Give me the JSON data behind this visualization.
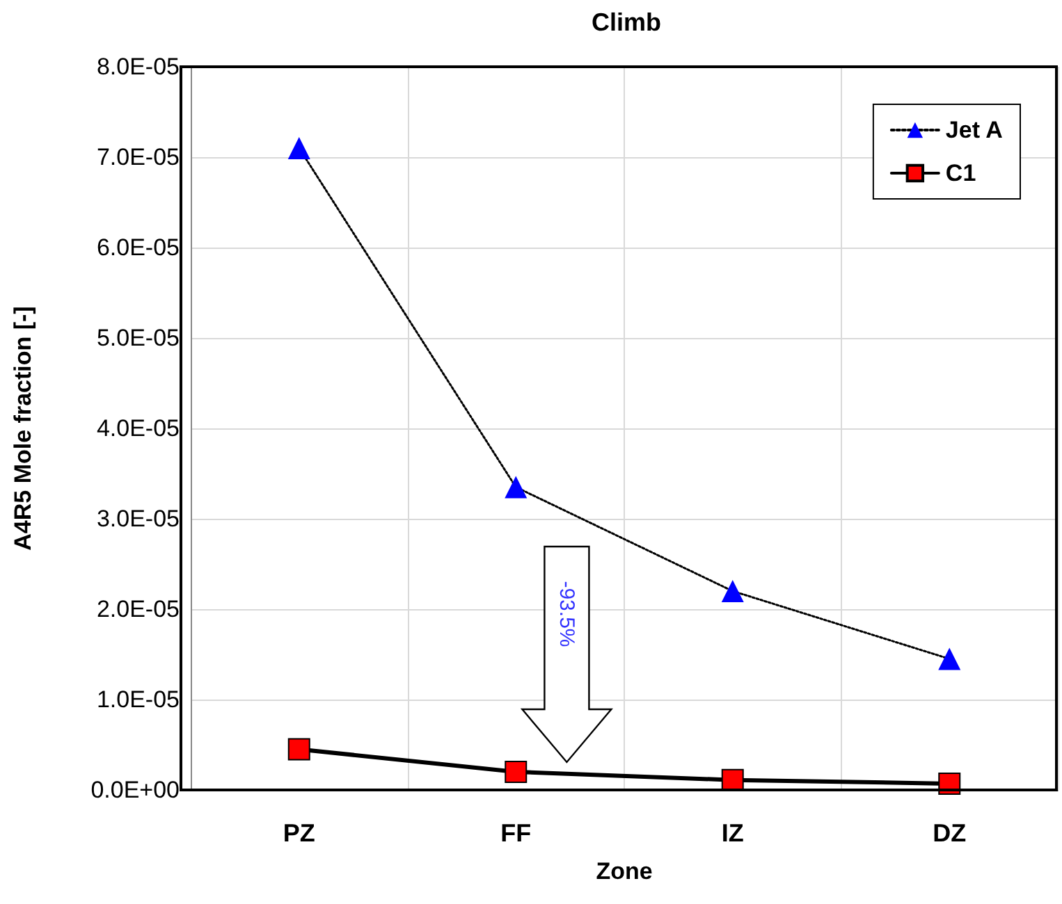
{
  "chart_data": {
    "type": "line",
    "title": "Climb",
    "xlabel": "Zone",
    "ylabel": "A4R5 Mole fraction [-]",
    "categories": [
      "PZ",
      "FF",
      "IZ",
      "DZ"
    ],
    "series": [
      {
        "name": "Jet A",
        "color": "#0000ff",
        "values": [
          7.1e-05,
          3.35e-05,
          2.2e-05,
          1.45e-05
        ],
        "marker": "triangle",
        "line_style": "dotted"
      },
      {
        "name": "C1",
        "color": "#ff0000",
        "values": [
          4.5e-06,
          2e-06,
          1.1e-06,
          7e-07
        ],
        "marker": "square",
        "line_style": "solid"
      }
    ],
    "ylim": [
      0,
      8e-05
    ],
    "yticks": [
      {
        "value": 0,
        "label": "0.0E+00"
      },
      {
        "value": 1e-05,
        "label": "1.0E-05"
      },
      {
        "value": 2e-05,
        "label": "2.0E-05"
      },
      {
        "value": 3e-05,
        "label": "3.0E-05"
      },
      {
        "value": 4e-05,
        "label": "4.0E-05"
      },
      {
        "value": 5e-05,
        "label": "5.0E-05"
      },
      {
        "value": 6e-05,
        "label": "6.0E-05"
      },
      {
        "value": 7e-05,
        "label": "7.0E-05"
      },
      {
        "value": 8e-05,
        "label": "8.0E-05"
      }
    ],
    "annotations": [
      "-93.5%"
    ],
    "grid": true,
    "legend": "top right"
  }
}
